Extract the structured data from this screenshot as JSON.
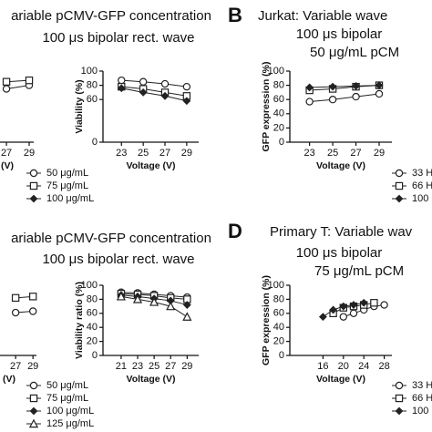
{
  "chart_data": [
    {
      "type": "line",
      "x": [
        23,
        25,
        27,
        29
      ],
      "xlim": [
        21.3,
        29.4
      ],
      "xticks": [
        27,
        29
      ],
      "ylim": [
        0,
        100
      ],
      "xlabel": "(V)",
      "series": [
        {
          "marker": "circle",
          "color": "#222222",
          "values": [
            null,
            null,
            75,
            80
          ]
        },
        {
          "marker": "square",
          "color": "#222222",
          "values": [
            null,
            null,
            85,
            87
          ]
        }
      ]
    },
    {
      "type": "line",
      "title": [
        "ariable pCMV-GFP concentration",
        "100 μs bipolar rect. wave"
      ],
      "x": [
        23,
        25,
        27,
        29
      ],
      "xlim": [
        21.3,
        30.1
      ],
      "xticks": [
        23,
        25,
        27,
        29
      ],
      "ylim": [
        0,
        100
      ],
      "yticks": [
        0,
        60,
        80,
        100
      ],
      "xlabel": "Voltage (V)",
      "ylabel": "Viability (%)",
      "series": [
        {
          "name": "50 μg/mL",
          "marker": "circle",
          "color": "#222222",
          "values": [
            87,
            85,
            82,
            78
          ]
        },
        {
          "name": "75 μg/mL",
          "marker": "square",
          "color": "#222222",
          "values": [
            78,
            75,
            70,
            65
          ]
        },
        {
          "name": "100 μg/mL",
          "marker": "diamond",
          "color": "#222222",
          "values": [
            76,
            70,
            65,
            58
          ]
        }
      ]
    },
    {
      "type": "line",
      "panel": "B",
      "title": [
        "Jurkat: Variable wave",
        "100 μs bipolar",
        "50 μg/mL pCM"
      ],
      "x": [
        23,
        25,
        27,
        29
      ],
      "xlim": [
        21.3,
        30.1
      ],
      "xticks": [
        23,
        25,
        27,
        29
      ],
      "ylim": [
        0,
        100
      ],
      "yticks": [
        0,
        20,
        40,
        60,
        80,
        100
      ],
      "xlabel": "Voltage (V)",
      "ylabel": "GFP expression (%)",
      "series": [
        {
          "name": "33 H",
          "marker": "circle",
          "color": "#222222",
          "values": [
            57,
            60,
            64,
            68
          ]
        },
        {
          "name": "66 H",
          "marker": "square",
          "color": "#222222",
          "values": [
            73,
            75,
            78,
            80
          ]
        },
        {
          "name": "100",
          "marker": "diamond",
          "color": "#222222",
          "values": [
            77,
            78,
            79,
            80
          ]
        }
      ]
    },
    {
      "type": "line",
      "x": [
        23,
        25,
        27,
        29
      ],
      "xlim": [
        18.8,
        29.4
      ],
      "xticks": [
        27,
        29
      ],
      "ylim": [
        0,
        100
      ],
      "xlabel": "(V)",
      "series": [
        {
          "marker": "circle",
          "color": "#222222",
          "values": [
            null,
            null,
            61,
            63
          ]
        },
        {
          "marker": "square",
          "color": "#222222",
          "values": [
            null,
            null,
            82,
            84
          ]
        }
      ]
    },
    {
      "type": "line",
      "title": [
        "ariable pCMV-GFP concentration",
        "100 μs bipolar rect. wave"
      ],
      "x": [
        21,
        23,
        25,
        27,
        29
      ],
      "xlim": [
        18.8,
        30.4
      ],
      "xticks": [
        21,
        23,
        25,
        27,
        29
      ],
      "ylim": [
        0,
        100
      ],
      "yticks": [
        0,
        20,
        40,
        60,
        80,
        100
      ],
      "xlabel": "Voltage (V)",
      "ylabel": "Viability ratio (%)",
      "series": [
        {
          "name": "50 μg/mL",
          "marker": "circle",
          "color": "#222222",
          "values": [
            90,
            89,
            87,
            85,
            83
          ]
        },
        {
          "name": "75 μg/mL",
          "marker": "square",
          "color": "#222222",
          "values": [
            88,
            87,
            85,
            82,
            80
          ]
        },
        {
          "name": "100 μg/mL",
          "marker": "diamond",
          "color": "#222222",
          "values": [
            86,
            84,
            81,
            78,
            72
          ]
        },
        {
          "name": "125 μg/mL",
          "marker": "triangle",
          "color": "#222222",
          "values": [
            84,
            80,
            76,
            70,
            55
          ]
        }
      ]
    },
    {
      "type": "line",
      "panel": "D",
      "title": [
        "Primary T: Variable wav",
        "100 μs bipolar",
        "75 μg/mL pCM"
      ],
      "x": [
        16,
        18,
        20,
        22,
        24,
        26,
        28
      ],
      "xlim": [
        9.5,
        29.5
      ],
      "xticks": [
        16,
        20,
        24,
        28
      ],
      "ylim": [
        0,
        100
      ],
      "yticks": [
        0,
        20,
        40,
        60,
        80,
        100
      ],
      "xlabel": "Voltage (V)",
      "ylabel": "GFP expression (%)",
      "series": [
        {
          "name": "33 H",
          "marker": "circle",
          "color": "#222222",
          "values": [
            null,
            null,
            55,
            60,
            65,
            70,
            72
          ]
        },
        {
          "name": "66 H",
          "marker": "square",
          "color": "#222222",
          "values": [
            null,
            60,
            68,
            70,
            72,
            75,
            null
          ]
        },
        {
          "name": "100",
          "marker": "diamond",
          "color": "#222222",
          "values": [
            55,
            65,
            70,
            72,
            75,
            null,
            null
          ]
        }
      ]
    }
  ]
}
